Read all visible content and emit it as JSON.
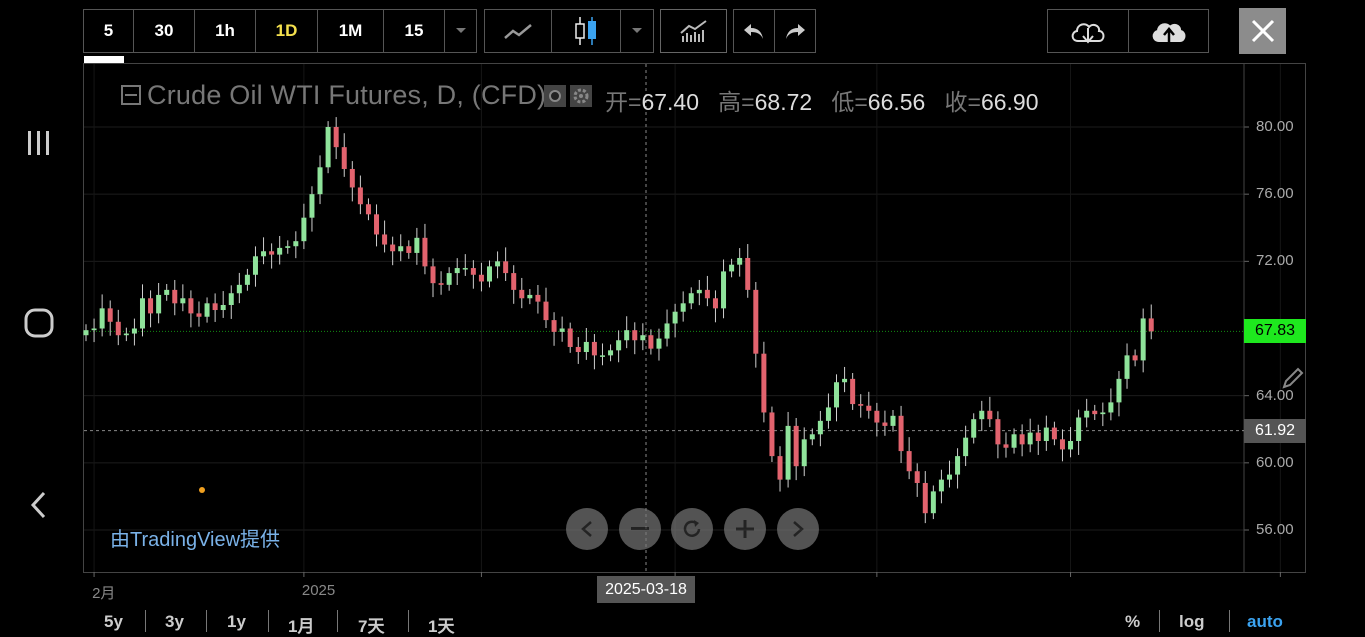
{
  "toolbar": {
    "intervals": [
      "5",
      "30",
      "1h",
      "1D",
      "1M",
      "15"
    ],
    "active_interval": "1D"
  },
  "chart_data": {
    "type": "candlestick",
    "title": "Crude Oil WTI Futures, D, (CFD)",
    "ohlc_labels": {
      "open": "开=",
      "high": "高=",
      "low": "低=",
      "close": "收="
    },
    "ohlc_values": {
      "open": "67.40",
      "high": "68.72",
      "low": "66.56",
      "close": "66.90"
    },
    "y_ticks": [
      "80.00",
      "76.00",
      "72.00",
      "64.00",
      "60.00",
      "56.00"
    ],
    "y_range": [
      53,
      82.5
    ],
    "x_ticks": [
      {
        "label": "2月",
        "index": 1
      },
      {
        "label": "2025",
        "index": 27
      },
      {
        "label": "",
        "index": 49
      },
      {
        "label": "",
        "index": 73
      },
      {
        "label": "",
        "index": 98
      },
      {
        "label": "",
        "index": 122
      },
      {
        "label": "",
        "index": 148
      },
      {
        "label": "",
        "index": 173
      }
    ],
    "last_price": "67.83",
    "crosshair_price": "61.92",
    "crosshair_date": "2025-03-18",
    "credit": "由TradingView提供",
    "closes": [
      67.9,
      68.0,
      69.2,
      68.4,
      67.6,
      67.7,
      68.0,
      69.8,
      68.9,
      70.0,
      70.3,
      69.5,
      69.8,
      68.9,
      68.7,
      69.5,
      69.1,
      69.4,
      70.1,
      70.6,
      71.2,
      72.3,
      72.6,
      72.4,
      72.8,
      72.9,
      73.2,
      74.6,
      76.0,
      77.6,
      80.0,
      78.8,
      77.5,
      76.4,
      75.4,
      74.8,
      73.6,
      73.0,
      72.6,
      72.9,
      72.5,
      73.4,
      71.7,
      70.7,
      70.6,
      71.3,
      71.6,
      71.6,
      71.2,
      70.8,
      71.7,
      72.0,
      71.3,
      70.3,
      69.8,
      70.0,
      69.6,
      68.5,
      67.8,
      68.0,
      66.9,
      66.6,
      67.2,
      66.4,
      66.4,
      66.7,
      67.3,
      67.9,
      67.3,
      67.6,
      66.8,
      67.4,
      68.3,
      69.0,
      69.5,
      70.1,
      70.3,
      69.8,
      69.2,
      71.4,
      71.8,
      72.2,
      70.3,
      66.5,
      63.0,
      60.4,
      59.0,
      62.2,
      59.8,
      61.4,
      61.7,
      62.5,
      63.3,
      64.8,
      65.0,
      63.5,
      63.4,
      63.1,
      62.4,
      62.2,
      62.8,
      60.7,
      59.5,
      58.8,
      57.0,
      58.3,
      59.0,
      59.3,
      60.4,
      61.5,
      62.6,
      63.1,
      62.6,
      61.1,
      60.9,
      61.7,
      61.1,
      61.8,
      61.3,
      62.1,
      61.4,
      60.8,
      61.3,
      62.7,
      63.1,
      62.9,
      63.0,
      63.6,
      65.0,
      66.4,
      66.1,
      68.6,
      67.83
    ],
    "series": [
      {
        "values": "closes"
      }
    ]
  },
  "ranges": [
    "5y",
    "3y",
    "1y",
    "1月",
    "7天",
    "1天"
  ],
  "scale_options": [
    "%",
    "log",
    "auto"
  ],
  "colors": {
    "up": "#8fe39b",
    "down": "#e2636e",
    "badge_green": "#1ee81e",
    "accent": "#f4e04d",
    "credit": "#7ab2e8"
  }
}
